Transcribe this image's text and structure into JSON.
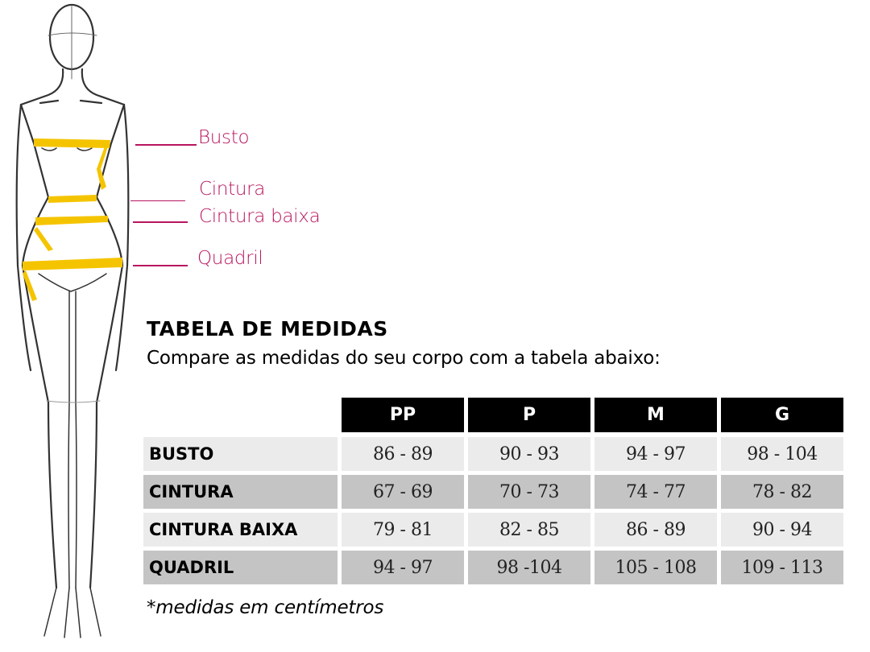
{
  "figure": {
    "labels": [
      "Busto",
      "Cintura",
      "Cintura baixa",
      "Quadril"
    ],
    "label_color": "#b8165f",
    "tape_color": "#f5c400"
  },
  "title": "TABELA DE MEDIDAS",
  "subtitle": "Compare as medidas do seu corpo com a tabela abaixo:",
  "table": {
    "columns": [
      "PP",
      "P",
      "M",
      "G"
    ],
    "rows": [
      {
        "label": "BUSTO",
        "values": [
          "86 - 89",
          "90 - 93",
          "94 - 97",
          "98 - 104"
        ]
      },
      {
        "label": "CINTURA",
        "values": [
          "67 - 69",
          "70 - 73",
          "74 - 77",
          "78 - 82"
        ]
      },
      {
        "label": "CINTURA BAIXA",
        "values": [
          "79 - 81",
          "82 - 85",
          "86 - 89",
          "90 - 94"
        ]
      },
      {
        "label": "QUADRIL",
        "values": [
          "94 - 97",
          "98 -104",
          "105 - 108",
          "109 - 113"
        ]
      }
    ]
  },
  "note": "*medidas em centímetros"
}
